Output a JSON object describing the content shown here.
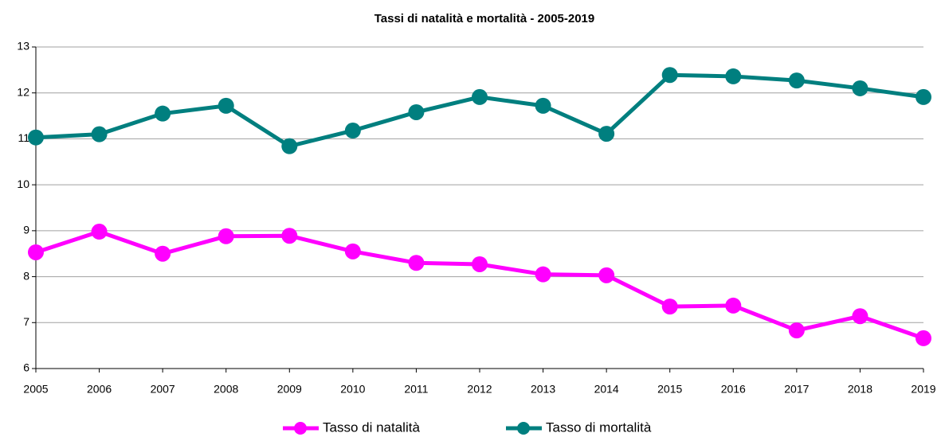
{
  "chart_data": {
    "type": "line",
    "title": "Tassi di natalità e mortalità - 2005-2019",
    "categories": [
      "2005",
      "2006",
      "2007",
      "2008",
      "2009",
      "2010",
      "2011",
      "2012",
      "2013",
      "2014",
      "2015",
      "2016",
      "2017",
      "2018",
      "2019"
    ],
    "series": [
      {
        "name": "Tasso di natalità",
        "color": "#ff00ff",
        "values": [
          8.53,
          8.98,
          8.5,
          8.88,
          8.89,
          8.55,
          8.3,
          8.27,
          8.05,
          8.03,
          7.35,
          7.37,
          6.83,
          7.14,
          6.66
        ]
      },
      {
        "name": "Tasso di mortalità",
        "color": "#007f7f",
        "values": [
          11.03,
          11.1,
          11.55,
          11.72,
          10.84,
          11.18,
          11.58,
          11.91,
          11.72,
          11.11,
          12.39,
          12.36,
          12.27,
          12.1,
          11.91
        ]
      }
    ],
    "ylim": [
      6,
      13
    ],
    "yticks": [
      6,
      7,
      8,
      9,
      10,
      11,
      12,
      13
    ],
    "grid": true,
    "legend": "bottom"
  }
}
